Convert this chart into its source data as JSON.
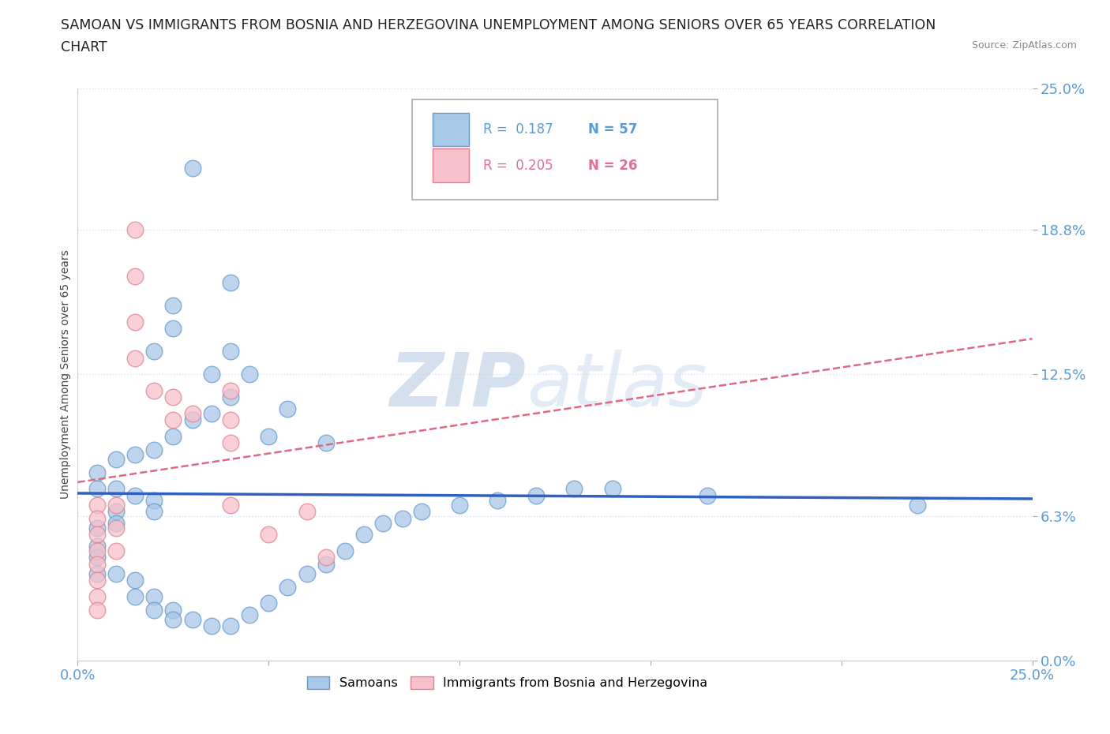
{
  "title_line1": "SAMOAN VS IMMIGRANTS FROM BOSNIA AND HERZEGOVINA UNEMPLOYMENT AMONG SENIORS OVER 65 YEARS CORRELATION",
  "title_line2": "CHART",
  "source_text": "Source: ZipAtlas.com",
  "ylabel": "Unemployment Among Seniors over 65 years",
  "xlim": [
    0.0,
    0.25
  ],
  "ylim": [
    0.0,
    0.25
  ],
  "ytick_labels": [
    "0.0%",
    "6.3%",
    "12.5%",
    "18.8%",
    "25.0%"
  ],
  "ytick_values": [
    0.0,
    0.063,
    0.125,
    0.188,
    0.25
  ],
  "xtick_labels": [
    "0.0%",
    "",
    "",
    "",
    "",
    "25.0%"
  ],
  "xtick_values": [
    0.0,
    0.05,
    0.1,
    0.15,
    0.2,
    0.25
  ],
  "watermark_zip": "ZIP",
  "watermark_atlas": "atlas",
  "legend_r1": "R =  0.187",
  "legend_n1": "N = 57",
  "legend_r2": "R =  0.205",
  "legend_n2": "N = 26",
  "samoan_color": "#a8c8e8",
  "samoan_edge": "#6699cc",
  "bosnia_color": "#f8c0cc",
  "bosnia_edge": "#e08090",
  "trend_samoan_color": "#3060c0",
  "trend_bosnia_color": "#e06880",
  "samoan_scatter": [
    [
      0.03,
      0.215
    ],
    [
      0.04,
      0.165
    ],
    [
      0.025,
      0.155
    ],
    [
      0.025,
      0.145
    ],
    [
      0.02,
      0.135
    ],
    [
      0.04,
      0.135
    ],
    [
      0.035,
      0.125
    ],
    [
      0.045,
      0.125
    ],
    [
      0.04,
      0.115
    ],
    [
      0.035,
      0.108
    ],
    [
      0.03,
      0.105
    ],
    [
      0.025,
      0.098
    ],
    [
      0.05,
      0.098
    ],
    [
      0.055,
      0.11
    ],
    [
      0.065,
      0.095
    ],
    [
      0.02,
      0.092
    ],
    [
      0.015,
      0.09
    ],
    [
      0.01,
      0.088
    ],
    [
      0.005,
      0.082
    ],
    [
      0.005,
      0.075
    ],
    [
      0.01,
      0.075
    ],
    [
      0.015,
      0.072
    ],
    [
      0.02,
      0.07
    ],
    [
      0.02,
      0.065
    ],
    [
      0.01,
      0.065
    ],
    [
      0.01,
      0.06
    ],
    [
      0.005,
      0.058
    ],
    [
      0.005,
      0.05
    ],
    [
      0.005,
      0.045
    ],
    [
      0.005,
      0.038
    ],
    [
      0.01,
      0.038
    ],
    [
      0.015,
      0.035
    ],
    [
      0.015,
      0.028
    ],
    [
      0.02,
      0.028
    ],
    [
      0.02,
      0.022
    ],
    [
      0.025,
      0.022
    ],
    [
      0.025,
      0.018
    ],
    [
      0.03,
      0.018
    ],
    [
      0.035,
      0.015
    ],
    [
      0.04,
      0.015
    ],
    [
      0.045,
      0.02
    ],
    [
      0.05,
      0.025
    ],
    [
      0.055,
      0.032
    ],
    [
      0.06,
      0.038
    ],
    [
      0.065,
      0.042
    ],
    [
      0.07,
      0.048
    ],
    [
      0.075,
      0.055
    ],
    [
      0.08,
      0.06
    ],
    [
      0.085,
      0.062
    ],
    [
      0.09,
      0.065
    ],
    [
      0.1,
      0.068
    ],
    [
      0.11,
      0.07
    ],
    [
      0.12,
      0.072
    ],
    [
      0.13,
      0.075
    ],
    [
      0.14,
      0.075
    ],
    [
      0.165,
      0.072
    ],
    [
      0.22,
      0.068
    ]
  ],
  "bosnia_scatter": [
    [
      0.005,
      0.068
    ],
    [
      0.005,
      0.062
    ],
    [
      0.005,
      0.055
    ],
    [
      0.005,
      0.048
    ],
    [
      0.005,
      0.042
    ],
    [
      0.005,
      0.035
    ],
    [
      0.005,
      0.028
    ],
    [
      0.005,
      0.022
    ],
    [
      0.01,
      0.068
    ],
    [
      0.01,
      0.058
    ],
    [
      0.01,
      0.048
    ],
    [
      0.015,
      0.188
    ],
    [
      0.015,
      0.168
    ],
    [
      0.015,
      0.148
    ],
    [
      0.015,
      0.132
    ],
    [
      0.02,
      0.118
    ],
    [
      0.025,
      0.115
    ],
    [
      0.03,
      0.108
    ],
    [
      0.025,
      0.105
    ],
    [
      0.04,
      0.118
    ],
    [
      0.04,
      0.105
    ],
    [
      0.04,
      0.095
    ],
    [
      0.04,
      0.068
    ],
    [
      0.05,
      0.055
    ],
    [
      0.06,
      0.065
    ],
    [
      0.065,
      0.045
    ]
  ],
  "title_fontsize": 12.5,
  "axis_label_fontsize": 10,
  "tick_fontsize": 13,
  "tick_color": "#5b9bd5",
  "grid_color": "#d8e4f0",
  "watermark_color_zip": "#b8cce4",
  "watermark_color_atlas": "#c8d8ee",
  "watermark_fontsize": 68
}
